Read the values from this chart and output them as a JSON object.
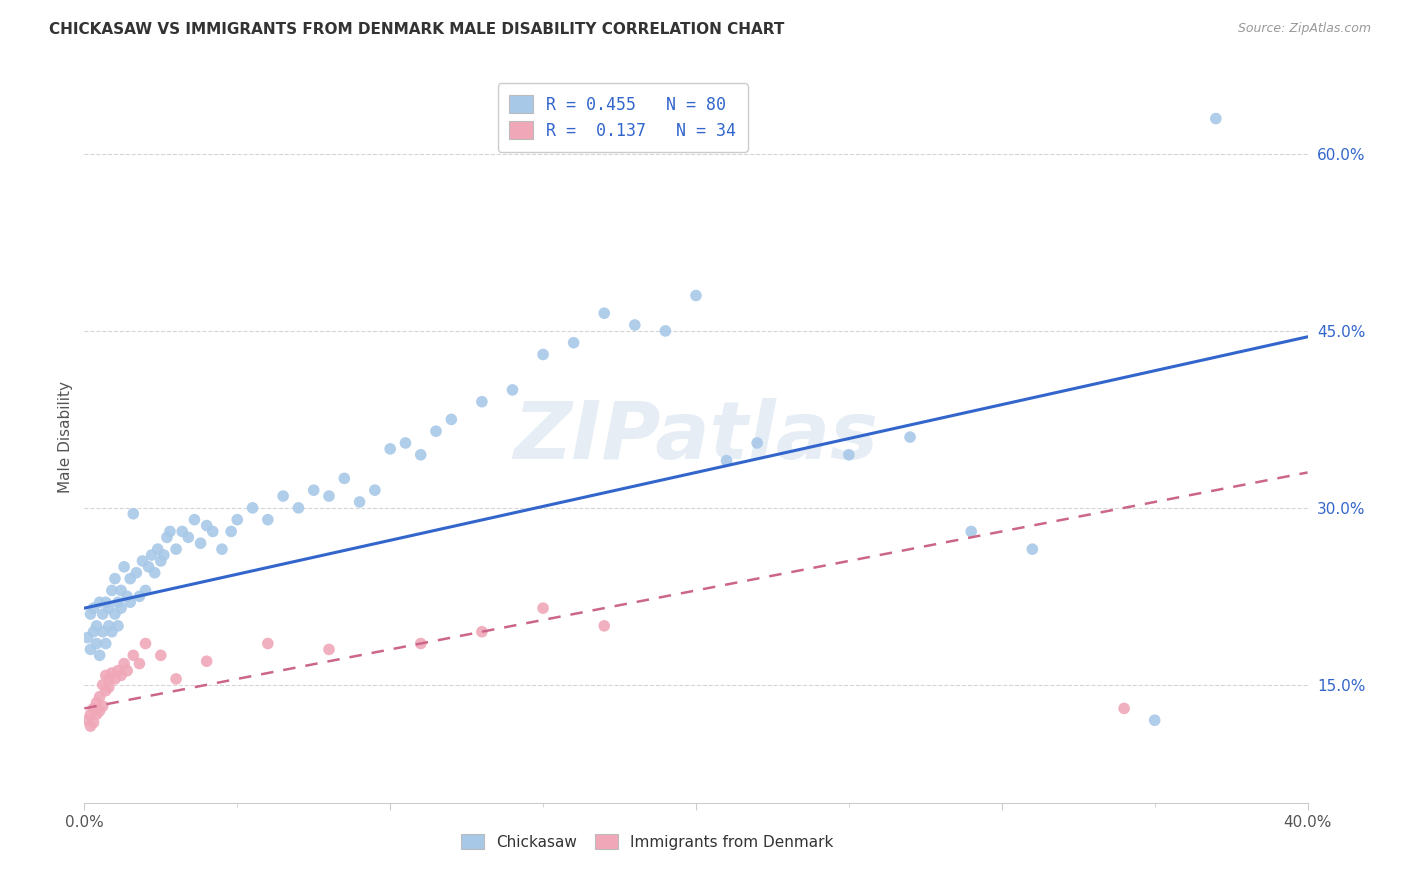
{
  "title": "CHICKASAW VS IMMIGRANTS FROM DENMARK MALE DISABILITY CORRELATION CHART",
  "source": "Source: ZipAtlas.com",
  "ylabel": "Male Disability",
  "x_min": 0.0,
  "x_max": 0.4,
  "y_min": 0.05,
  "y_max": 0.67,
  "y_tick_labels_right": [
    "15.0%",
    "30.0%",
    "45.0%",
    "60.0%"
  ],
  "y_tick_positions_right": [
    0.15,
    0.3,
    0.45,
    0.6
  ],
  "chickasaw_color": "#a8c8e8",
  "denmark_color": "#f0a8b8",
  "chickasaw_line_color": "#3366cc",
  "denmark_line_color": "#cc6688",
  "legend_label1": "R = 0.455   N = 80",
  "legend_label2": "R =  0.137   N = 34",
  "legend_text_color": "#3366cc",
  "watermark": "ZIPatlas",
  "legend_box_color1": "#a8c8e8",
  "legend_box_color2": "#f0a8b8",
  "bottom_legend_label1": "Chickasaw",
  "bottom_legend_label2": "Immigrants from Denmark",
  "chickasaw_line_x0": 0.0,
  "chickasaw_line_y0": 0.215,
  "chickasaw_line_x1": 0.4,
  "chickasaw_line_y1": 0.445,
  "denmark_line_x0": 0.0,
  "denmark_line_y0": 0.13,
  "denmark_line_x1": 0.4,
  "denmark_line_y1": 0.33,
  "chickasaw_x": [
    0.001,
    0.002,
    0.002,
    0.003,
    0.003,
    0.004,
    0.004,
    0.005,
    0.005,
    0.006,
    0.006,
    0.007,
    0.007,
    0.008,
    0.008,
    0.009,
    0.009,
    0.01,
    0.01,
    0.011,
    0.011,
    0.012,
    0.012,
    0.013,
    0.014,
    0.015,
    0.015,
    0.016,
    0.017,
    0.018,
    0.019,
    0.02,
    0.021,
    0.022,
    0.023,
    0.024,
    0.025,
    0.026,
    0.027,
    0.028,
    0.03,
    0.032,
    0.034,
    0.036,
    0.038,
    0.04,
    0.042,
    0.045,
    0.048,
    0.05,
    0.055,
    0.06,
    0.065,
    0.07,
    0.075,
    0.08,
    0.085,
    0.09,
    0.095,
    0.1,
    0.105,
    0.11,
    0.115,
    0.12,
    0.13,
    0.14,
    0.15,
    0.16,
    0.17,
    0.18,
    0.19,
    0.2,
    0.21,
    0.22,
    0.25,
    0.27,
    0.29,
    0.31,
    0.35,
    0.37
  ],
  "chickasaw_y": [
    0.19,
    0.18,
    0.21,
    0.195,
    0.215,
    0.185,
    0.2,
    0.175,
    0.22,
    0.195,
    0.21,
    0.185,
    0.22,
    0.2,
    0.215,
    0.195,
    0.23,
    0.21,
    0.24,
    0.2,
    0.22,
    0.23,
    0.215,
    0.25,
    0.225,
    0.24,
    0.22,
    0.295,
    0.245,
    0.225,
    0.255,
    0.23,
    0.25,
    0.26,
    0.245,
    0.265,
    0.255,
    0.26,
    0.275,
    0.28,
    0.265,
    0.28,
    0.275,
    0.29,
    0.27,
    0.285,
    0.28,
    0.265,
    0.28,
    0.29,
    0.3,
    0.29,
    0.31,
    0.3,
    0.315,
    0.31,
    0.325,
    0.305,
    0.315,
    0.35,
    0.355,
    0.345,
    0.365,
    0.375,
    0.39,
    0.4,
    0.43,
    0.44,
    0.465,
    0.455,
    0.45,
    0.48,
    0.34,
    0.355,
    0.345,
    0.36,
    0.28,
    0.265,
    0.12,
    0.63
  ],
  "denmark_x": [
    0.001,
    0.002,
    0.002,
    0.003,
    0.003,
    0.004,
    0.004,
    0.005,
    0.005,
    0.006,
    0.006,
    0.007,
    0.007,
    0.008,
    0.008,
    0.009,
    0.01,
    0.011,
    0.012,
    0.013,
    0.014,
    0.016,
    0.018,
    0.02,
    0.025,
    0.03,
    0.04,
    0.06,
    0.08,
    0.11,
    0.13,
    0.15,
    0.17,
    0.34
  ],
  "denmark_y": [
    0.12,
    0.125,
    0.115,
    0.13,
    0.118,
    0.125,
    0.135,
    0.128,
    0.14,
    0.132,
    0.15,
    0.145,
    0.158,
    0.148,
    0.155,
    0.16,
    0.155,
    0.162,
    0.158,
    0.168,
    0.162,
    0.175,
    0.168,
    0.185,
    0.175,
    0.155,
    0.17,
    0.185,
    0.18,
    0.185,
    0.195,
    0.215,
    0.2,
    0.13
  ]
}
